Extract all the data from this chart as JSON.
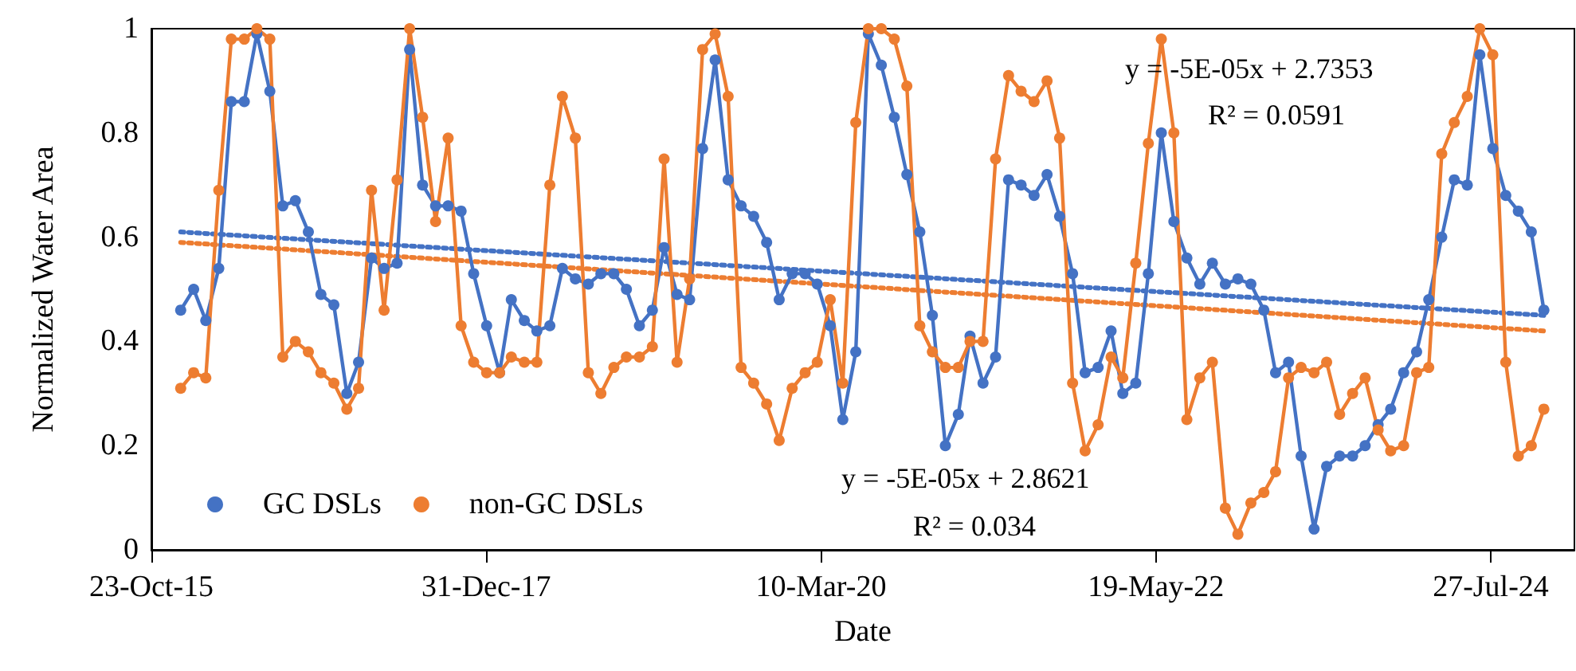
{
  "chart_data": {
    "type": "line",
    "xlabel": "Date",
    "ylabel": "Normalized Water Area",
    "x": [
      "2016-01",
      "2016-02",
      "2016-03",
      "2016-04",
      "2016-05",
      "2016-06",
      "2016-07",
      "2016-08",
      "2016-09",
      "2016-10",
      "2016-11",
      "2016-12",
      "2017-01",
      "2017-02",
      "2017-03",
      "2017-04",
      "2017-05",
      "2017-06",
      "2017-07",
      "2017-08",
      "2017-09",
      "2017-10",
      "2017-11",
      "2017-12",
      "2018-01",
      "2018-02",
      "2018-03",
      "2018-04",
      "2018-05",
      "2018-06",
      "2018-07",
      "2018-08",
      "2018-09",
      "2018-10",
      "2018-11",
      "2018-12",
      "2019-01",
      "2019-02",
      "2019-03",
      "2019-04",
      "2019-05",
      "2019-06",
      "2019-07",
      "2019-08",
      "2019-09",
      "2019-10",
      "2019-11",
      "2019-12",
      "2020-01",
      "2020-02",
      "2020-03",
      "2020-04",
      "2020-05",
      "2020-06",
      "2020-07",
      "2020-08",
      "2020-09",
      "2020-10",
      "2020-11",
      "2020-12",
      "2021-01",
      "2021-02",
      "2021-03",
      "2021-04",
      "2021-05",
      "2021-06",
      "2021-07",
      "2021-08",
      "2021-09",
      "2021-10",
      "2021-11",
      "2021-12",
      "2022-01",
      "2022-02",
      "2022-03",
      "2022-04",
      "2022-05",
      "2022-06",
      "2022-07",
      "2022-08",
      "2022-09",
      "2022-10",
      "2022-11",
      "2022-12",
      "2023-01",
      "2023-02",
      "2023-03",
      "2023-04",
      "2023-05",
      "2023-06",
      "2023-07",
      "2023-08",
      "2023-09",
      "2023-10",
      "2023-11",
      "2023-12",
      "2024-01",
      "2024-02",
      "2024-03",
      "2024-04",
      "2024-05",
      "2024-06",
      "2024-07",
      "2024-08",
      "2024-09",
      "2024-10",
      "2024-11",
      "2024-12"
    ],
    "series": [
      {
        "name": "GC DSLs",
        "color": "#4472c4",
        "values": [
          0.46,
          0.5,
          0.44,
          0.54,
          0.86,
          0.86,
          0.99,
          0.88,
          0.66,
          0.67,
          0.61,
          0.49,
          0.47,
          0.3,
          0.36,
          0.56,
          0.54,
          0.55,
          0.96,
          0.7,
          0.66,
          0.66,
          0.65,
          0.53,
          0.43,
          0.34,
          0.48,
          0.44,
          0.42,
          0.43,
          0.54,
          0.52,
          0.51,
          0.53,
          0.53,
          0.5,
          0.43,
          0.46,
          0.58,
          0.49,
          0.48,
          0.77,
          0.94,
          0.71,
          0.66,
          0.64,
          0.59,
          0.48,
          0.53,
          0.53,
          0.51,
          0.43,
          0.25,
          0.38,
          0.99,
          0.93,
          0.83,
          0.72,
          0.61,
          0.45,
          0.2,
          0.26,
          0.41,
          0.32,
          0.37,
          0.71,
          0.7,
          0.68,
          0.72,
          0.64,
          0.53,
          0.34,
          0.35,
          0.42,
          0.3,
          0.32,
          0.53,
          0.8,
          0.63,
          0.56,
          0.51,
          0.55,
          0.51,
          0.52,
          0.51,
          0.46,
          0.34,
          0.36,
          0.18,
          0.04,
          0.16,
          0.18,
          0.18,
          0.2,
          0.24,
          0.27,
          0.34,
          0.38,
          0.48,
          0.6,
          0.71,
          0.7,
          0.95,
          0.77,
          0.68,
          0.65,
          0.61,
          0.46
        ]
      },
      {
        "name": "non-GC DSLs",
        "color": "#ed7d31",
        "values": [
          0.31,
          0.34,
          0.33,
          0.69,
          0.98,
          0.98,
          1.0,
          0.98,
          0.37,
          0.4,
          0.38,
          0.34,
          0.32,
          0.27,
          0.31,
          0.69,
          0.46,
          0.71,
          1.0,
          0.83,
          0.63,
          0.79,
          0.43,
          0.36,
          0.34,
          0.34,
          0.37,
          0.36,
          0.36,
          0.7,
          0.87,
          0.79,
          0.34,
          0.3,
          0.35,
          0.37,
          0.37,
          0.39,
          0.75,
          0.36,
          0.52,
          0.96,
          0.99,
          0.87,
          0.35,
          0.32,
          0.28,
          0.21,
          0.31,
          0.34,
          0.36,
          0.48,
          0.32,
          0.82,
          1.0,
          1.0,
          0.98,
          0.89,
          0.43,
          0.38,
          0.35,
          0.35,
          0.4,
          0.4,
          0.75,
          0.91,
          0.88,
          0.86,
          0.9,
          0.79,
          0.32,
          0.19,
          0.24,
          0.37,
          0.33,
          0.55,
          0.78,
          0.98,
          0.8,
          0.25,
          0.33,
          0.36,
          0.08,
          0.03,
          0.09,
          0.11,
          0.15,
          0.33,
          0.35,
          0.34,
          0.36,
          0.26,
          0.3,
          0.33,
          0.23,
          0.19,
          0.2,
          0.34,
          0.35,
          0.76,
          0.82,
          0.87,
          1.0,
          0.95,
          0.36,
          0.18,
          0.2,
          0.27
        ]
      },
      {
        "color": "#4472c4",
        "x": [
          "2016-01",
          "2024-12"
        ],
        "values": [
          0.61,
          0.45
        ],
        "line_style": "dotted",
        "marker": "none"
      },
      {
        "color": "#ed7d31",
        "x": [
          "2016-01",
          "2024-12"
        ],
        "values": [
          0.59,
          0.42
        ],
        "line_style": "dotted",
        "marker": "none"
      }
    ],
    "xlim": [
      "2015-10-23",
      "2025-02-12"
    ],
    "xticks": [
      {
        "value": "2015-10-23",
        "label": "23-Oct-15"
      },
      {
        "value": "2017-12-31",
        "label": "31-Dec-17"
      },
      {
        "value": "2020-03-10",
        "label": "10-Mar-20"
      },
      {
        "value": "2022-05-19",
        "label": "19-May-22"
      },
      {
        "value": "2024-07-27",
        "label": "27-Jul-24"
      }
    ],
    "ylim": [
      0,
      1
    ],
    "yticks": [
      0,
      0.2,
      0.4,
      0.6,
      0.8,
      1
    ],
    "marker": "circle",
    "line_style": "solid",
    "legend": "bottom left",
    "grid": false,
    "annotations": [
      "y = -5E-05x + 2.7353",
      "R² = 0.0591",
      "y = -5E-05x + 2.8621",
      "R² = 0.034"
    ]
  }
}
